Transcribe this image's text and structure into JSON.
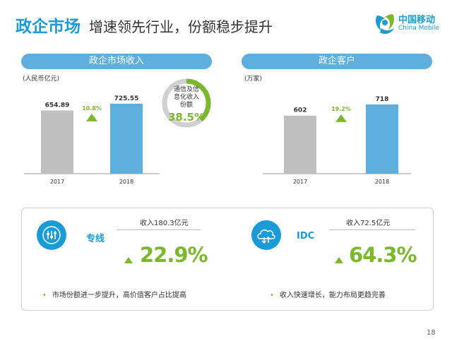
{
  "header": {
    "title": "政企市场",
    "subtitle": "增速领先行业，份额稳步提升"
  },
  "logo": {
    "name_cn": "中国移动",
    "name_en": "China Mobile",
    "color": "#1a9bd7"
  },
  "revenue_panel": {
    "title": "政企市场收入",
    "unit": "(人民币亿元)",
    "donut_label_lines": [
      "通信及信",
      "息化收入",
      "份额"
    ],
    "donut_value": "38.5%",
    "donut_fraction": 0.385
  },
  "customer_panel": {
    "title": "政企客户",
    "unit": "(万家)"
  },
  "chart_data": [
    {
      "type": "bar",
      "categories": [
        "2017",
        "2018"
      ],
      "values": [
        654.89,
        725.55
      ],
      "value_labels": [
        "654.89",
        "725.55"
      ],
      "growth_label": "10.8%",
      "colors": [
        "#bfbfbf",
        "#5eaede"
      ],
      "ylim": [
        0,
        900
      ]
    },
    {
      "type": "bar",
      "categories": [
        "2017",
        "2018"
      ],
      "values": [
        602,
        718
      ],
      "value_labels": [
        "602",
        "718"
      ],
      "growth_label": "19.2%",
      "colors": [
        "#bfbfbf",
        "#5eaede"
      ],
      "ylim": [
        0,
        900
      ]
    }
  ],
  "services": [
    {
      "name": "专线",
      "revenue": "收入180.3亿元",
      "growth": "22.9%",
      "bullet": "市场份额进一步提升，高价值客户占比提高",
      "icon": "dedicated-line-icon"
    },
    {
      "name": "IDC",
      "revenue": "收入72.5亿元",
      "growth": "64.3%",
      "bullet": "收入快速增长，能力布局更趋完善",
      "icon": "cloud-icon"
    }
  ],
  "page_number": "18"
}
